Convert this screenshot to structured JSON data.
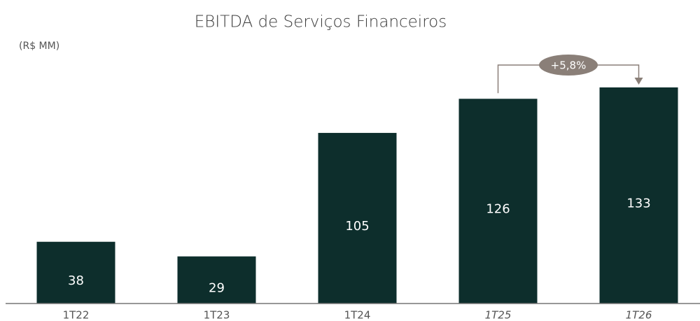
{
  "chart_data": {
    "type": "bar",
    "title": "EBITDA de Serviços Financeiros",
    "subtitle": "(R$ MM)",
    "categories": [
      "1T22",
      "1T23",
      "1T24",
      "1T25",
      "1T26"
    ],
    "values": [
      38,
      29,
      105,
      126,
      133
    ],
    "color": "#0d2e2c",
    "annotation": "+5,8%"
  }
}
